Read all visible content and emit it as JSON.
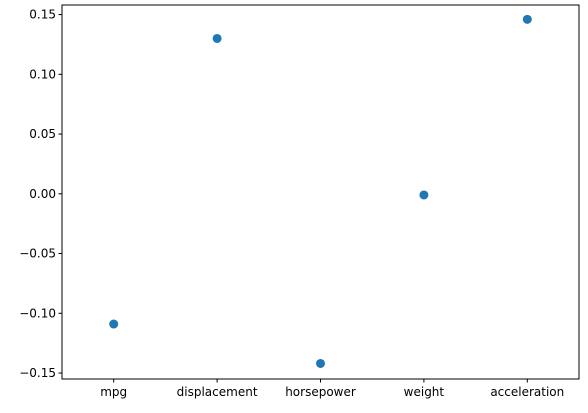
{
  "chart_data": {
    "type": "scatter",
    "title": "",
    "xlabel": "",
    "ylabel": "",
    "categories": [
      "mpg",
      "displacement",
      "horsepower",
      "weight",
      "acceleration"
    ],
    "values": [
      -0.109,
      0.13,
      -0.142,
      -0.001,
      0.146
    ],
    "ylim": [
      -0.155,
      0.158
    ],
    "yticks": [
      -0.15,
      -0.1,
      -0.05,
      0.0,
      0.05,
      0.1,
      0.15
    ],
    "ytick_labels": [
      "−0.15",
      "−0.10",
      "−0.05",
      "0.00",
      "0.05",
      "0.10",
      "0.15"
    ],
    "grid": false,
    "legend": "none",
    "marker_color": "#1f77b4"
  }
}
